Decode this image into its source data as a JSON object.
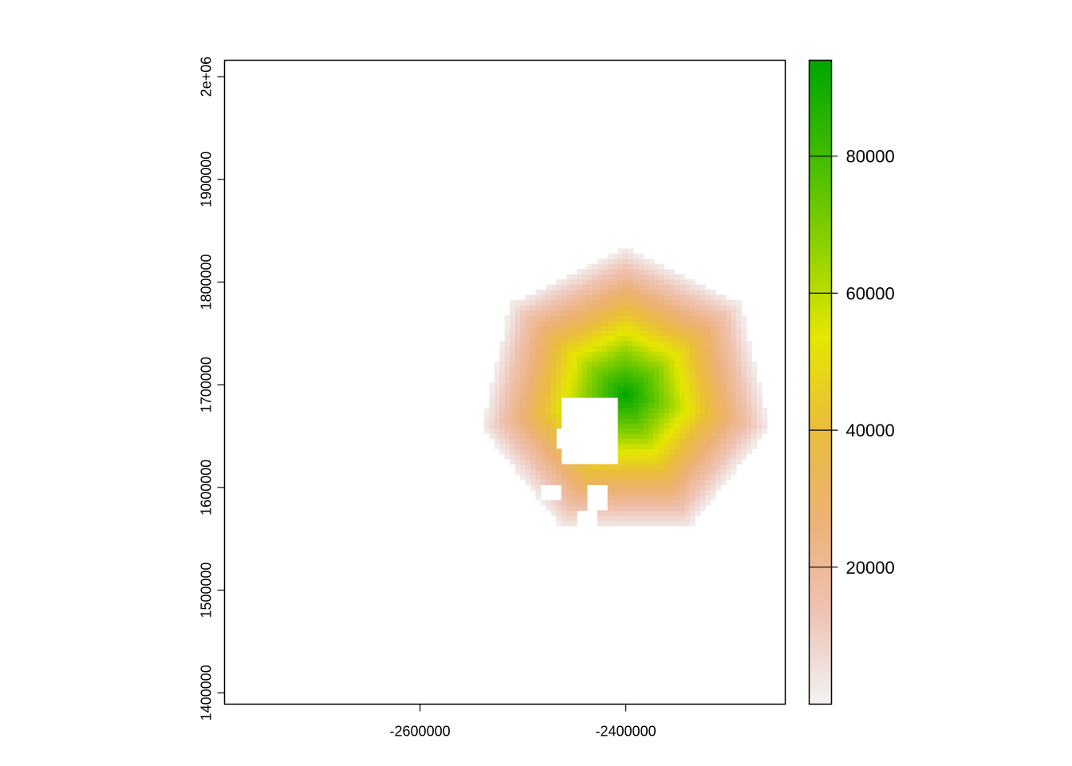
{
  "chart_data": {
    "type": "heatmap",
    "title": "",
    "xlabel": "",
    "ylabel": "",
    "xlim": [
      -2790000,
      -2245000
    ],
    "ylim": [
      1389000,
      2016000
    ],
    "x_ticks": [
      -2600000,
      -2400000
    ],
    "x_tick_labels": [
      "-2600000",
      "-2400000"
    ],
    "y_ticks": [
      1400000,
      1500000,
      1600000,
      1700000,
      1800000,
      1900000,
      2000000
    ],
    "y_tick_labels": [
      "1400000",
      "1500000",
      "1600000",
      "1700000",
      "1800000",
      "1900000",
      "2e+06"
    ],
    "cell_size": 5000,
    "field": {
      "center": [
        -2400000,
        1690000
      ],
      "peak_value": 94000,
      "outer_radius": 145000,
      "polygon_sides": 7
    },
    "masked_regions": [
      {
        "x": [
          -2460000,
          -2410000
        ],
        "y": [
          1625000,
          1688000
        ]
      },
      {
        "x": [
          -2465000,
          -2448000
        ],
        "y": [
          1638000,
          1655000
        ]
      },
      {
        "x": [
          -2435000,
          -2420000
        ],
        "y": [
          1578000,
          1602000
        ]
      },
      {
        "x": [
          -2480000,
          -2465000
        ],
        "y": [
          1590000,
          1603000
        ]
      },
      {
        "x": [
          -2445000,
          -2430000
        ],
        "y": [
          1562000,
          1578000
        ]
      }
    ],
    "legend": {
      "position": "right",
      "min": 0,
      "max": 94000,
      "ticks": [
        20000,
        40000,
        60000,
        80000
      ],
      "tick_labels": [
        "20000",
        "40000",
        "60000",
        "80000"
      ],
      "palette": [
        "#F2F2F2",
        "#EFC2B3",
        "#ECB176",
        "#E9BD3A",
        "#E6E600",
        "#8BD000",
        "#3EBB00",
        "#00A600"
      ]
    },
    "grid": false
  }
}
